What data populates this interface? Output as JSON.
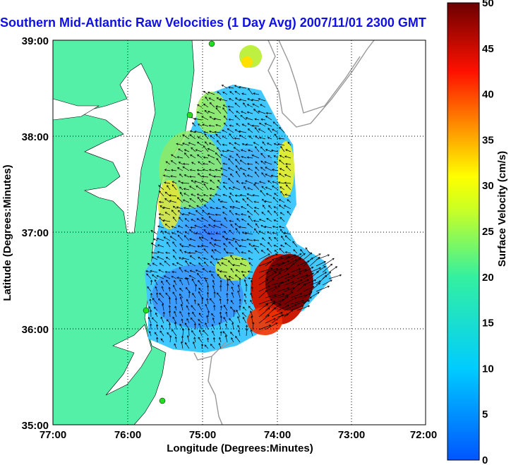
{
  "title": "Southern Mid-Atlantic Raw Velocities (1 Day Avg) 2007/11/01 2300 GMT",
  "x_axis": {
    "label": "Longitude (Degrees:Minutes)",
    "ticks": [
      "77:00",
      "76:00",
      "75:00",
      "74:00",
      "73:00",
      "72:00"
    ]
  },
  "y_axis": {
    "label": "Latitude (Degrees:Minutes)",
    "ticks": [
      "39:00",
      "38:00",
      "37:00",
      "36:00",
      "35:00"
    ]
  },
  "colorbar": {
    "label": "Surface Velocity (cm/s)",
    "ticks": [
      "50",
      "45",
      "40",
      "35",
      "30",
      "25",
      "20",
      "15",
      "10",
      "5",
      "0"
    ],
    "min": 0,
    "max": 50
  },
  "colors": {
    "land": "#55f0a8",
    "title": "#1010e0",
    "station": "#22dd22"
  },
  "extent": {
    "lon": [
      -77,
      -72
    ],
    "lat": [
      35,
      39
    ]
  }
}
